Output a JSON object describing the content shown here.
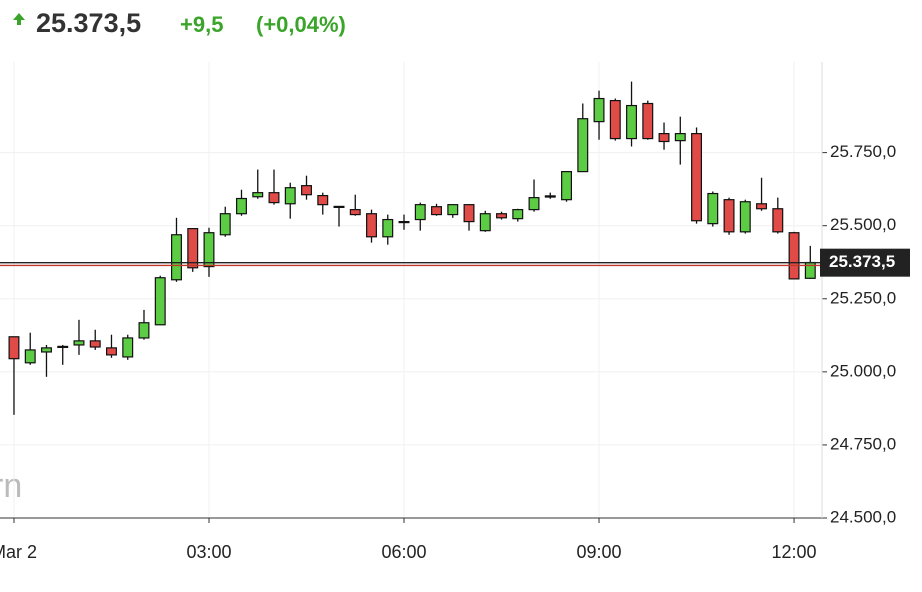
{
  "header": {
    "price": "25.373,5",
    "change": "+9,5",
    "change_pct": "(+0,04%)"
  },
  "chart_data": {
    "type": "candlestick",
    "watermark": "rn",
    "x": [
      0,
      0.25,
      0.5,
      0.75,
      1,
      1.25,
      1.5,
      1.75,
      2,
      2.25,
      2.5,
      2.75,
      3,
      3.25,
      3.5,
      3.75,
      4,
      4.25,
      4.5,
      4.75,
      5,
      5.25,
      5.5,
      5.75,
      6,
      6.25,
      6.5,
      6.75,
      7,
      7.25,
      7.5,
      7.75,
      8,
      8.25,
      8.5,
      8.75,
      9,
      9.25,
      9.5,
      9.75,
      10,
      10.25,
      10.5,
      10.75,
      11,
      11.25,
      11.5,
      11.75,
      12,
      12.25
    ],
    "open": [
      25120,
      25031,
      25068,
      25085,
      25092,
      25106,
      25082,
      25051,
      25116,
      25161,
      25315,
      25490,
      25360,
      25469,
      25541,
      25599,
      25613,
      25575,
      25637,
      25603,
      25566,
      25555,
      25541,
      25462,
      25512,
      25521,
      25565,
      25538,
      25572,
      25483,
      25541,
      25524,
      25555,
      25598,
      25589,
      25685,
      25856,
      25928,
      25798,
      25918,
      25815,
      25791,
      25815,
      25507,
      25589,
      25479,
      25575,
      25558,
      25476,
      25320
    ],
    "high": [
      25120,
      25134,
      25092,
      25092,
      25178,
      25144,
      25127,
      25127,
      25212,
      25329,
      25527,
      25490,
      25493,
      25565,
      25623,
      25692,
      25692,
      25647,
      25671,
      25613,
      25565,
      25606,
      25555,
      25538,
      25538,
      25579,
      25575,
      25572,
      25572,
      25551,
      25548,
      25558,
      25658,
      25613,
      25685,
      25918,
      25962,
      25935,
      25993,
      25928,
      25853,
      25873,
      25836,
      25617,
      25596,
      25589,
      25664,
      25596,
      25479,
      25431
    ],
    "low": [
      24853,
      25024,
      24983,
      25024,
      25058,
      25075,
      25048,
      25041,
      25110,
      25161,
      25308,
      25342,
      25325,
      25462,
      25534,
      25592,
      25572,
      25524,
      25589,
      25538,
      25497,
      25534,
      25442,
      25435,
      25486,
      25483,
      25534,
      25527,
      25483,
      25479,
      25521,
      25514,
      25548,
      25592,
      25582,
      25685,
      25794,
      25791,
      25771,
      25794,
      25760,
      25709,
      25507,
      25497,
      25469,
      25473,
      25551,
      25473,
      25318,
      25318
    ],
    "close": [
      25045,
      25075,
      25082,
      25087,
      25106,
      25085,
      25058,
      25116,
      25168,
      25322,
      25469,
      25356,
      25476,
      25541,
      25593,
      25613,
      25579,
      25630,
      25606,
      25572,
      25565,
      25538,
      25462,
      25521,
      25514,
      25572,
      25538,
      25572,
      25514,
      25541,
      25527,
      25555,
      25596,
      25602,
      25685,
      25866,
      25935,
      25798,
      25911,
      25798,
      25788,
      25815,
      25517,
      25610,
      25479,
      25582,
      25558,
      25479,
      25318,
      25374
    ],
    "up_color": "#5dcc45",
    "down_color": "#e04a47",
    "xlim": [
      -0.215,
      12.43
    ],
    "xticks": [
      {
        "value": 0,
        "label": "Mar 2"
      },
      {
        "value": 3,
        "label": "03:00"
      },
      {
        "value": 6,
        "label": "06:00"
      },
      {
        "value": 9,
        "label": "09:00"
      },
      {
        "value": 12,
        "label": "12:00"
      }
    ],
    "ylim": [
      24500,
      26060
    ],
    "yticks": [
      {
        "value": 24500,
        "label": "24.500,0"
      },
      {
        "value": 24750,
        "label": "24.750,0"
      },
      {
        "value": 25000,
        "label": "25.000,0"
      },
      {
        "value": 25250,
        "label": "25.250,0"
      },
      {
        "value": 25500,
        "label": "25.500,0"
      },
      {
        "value": 25750,
        "label": "25.750,0"
      }
    ],
    "grid": true,
    "last_price": 25373.5,
    "last_price_label": "25.373,5",
    "last_price_color": "#222222",
    "prev_close": 25364,
    "prev_close_color": "#c0392b"
  }
}
